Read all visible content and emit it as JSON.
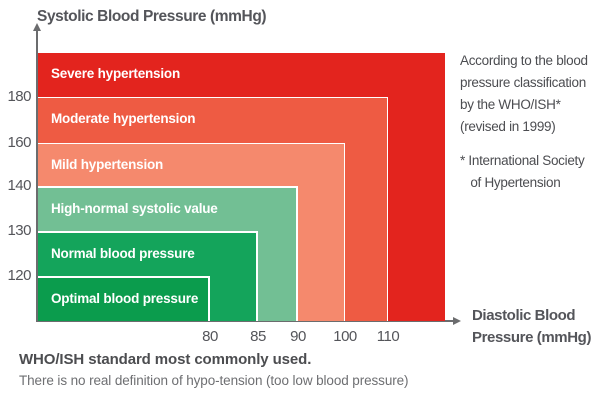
{
  "chart_data": {
    "type": "area",
    "description": "Nested blood pressure classification zones, systolic vs diastolic",
    "ylabel": "Systolic Blood Pressure (mmHg)",
    "xlabel": "Diastolic Blood Pressure (mmHg)",
    "y_ticks": [
      120,
      130,
      140,
      160,
      180
    ],
    "x_ticks": [
      80,
      85,
      90,
      100,
      110
    ],
    "grid": false,
    "zones": [
      {
        "label": "Severe hypertension",
        "systolic_max": null,
        "diastolic_max": null,
        "color": "#e3241e"
      },
      {
        "label": "Moderate hypertension",
        "systolic_max": 180,
        "diastolic_max": 110,
        "color": "#ee5b43"
      },
      {
        "label": "Mild hypertension",
        "systolic_max": 160,
        "diastolic_max": 100,
        "color": "#f5896d"
      },
      {
        "label": "High-normal systolic value",
        "systolic_max": 140,
        "diastolic_max": 90,
        "color": "#72bf94"
      },
      {
        "label": "Normal blood pressure",
        "systolic_max": 130,
        "diastolic_max": 85,
        "color": "#14a45b"
      },
      {
        "label": "Optimal blood pressure",
        "systolic_max": 120,
        "diastolic_max": 80,
        "color": "#0b9c4d"
      }
    ]
  },
  "annotation": {
    "text": "According to the blood\npressure classification\nby the WHO/ISH*\n(revised in 1999)",
    "footnote": "* International Society\n   of Hypertension"
  },
  "caption": {
    "headline": "WHO/ISH standard most commonly used.",
    "note": "There is no real definition of hypo-tension (too low blood pressure)"
  },
  "colors": {
    "axis": "#6b6c6e",
    "tick_text": "#54555a",
    "zone_label_text": "#ffffff",
    "annotation_text": "#4c4d51",
    "note_text": "#6e6f72"
  }
}
